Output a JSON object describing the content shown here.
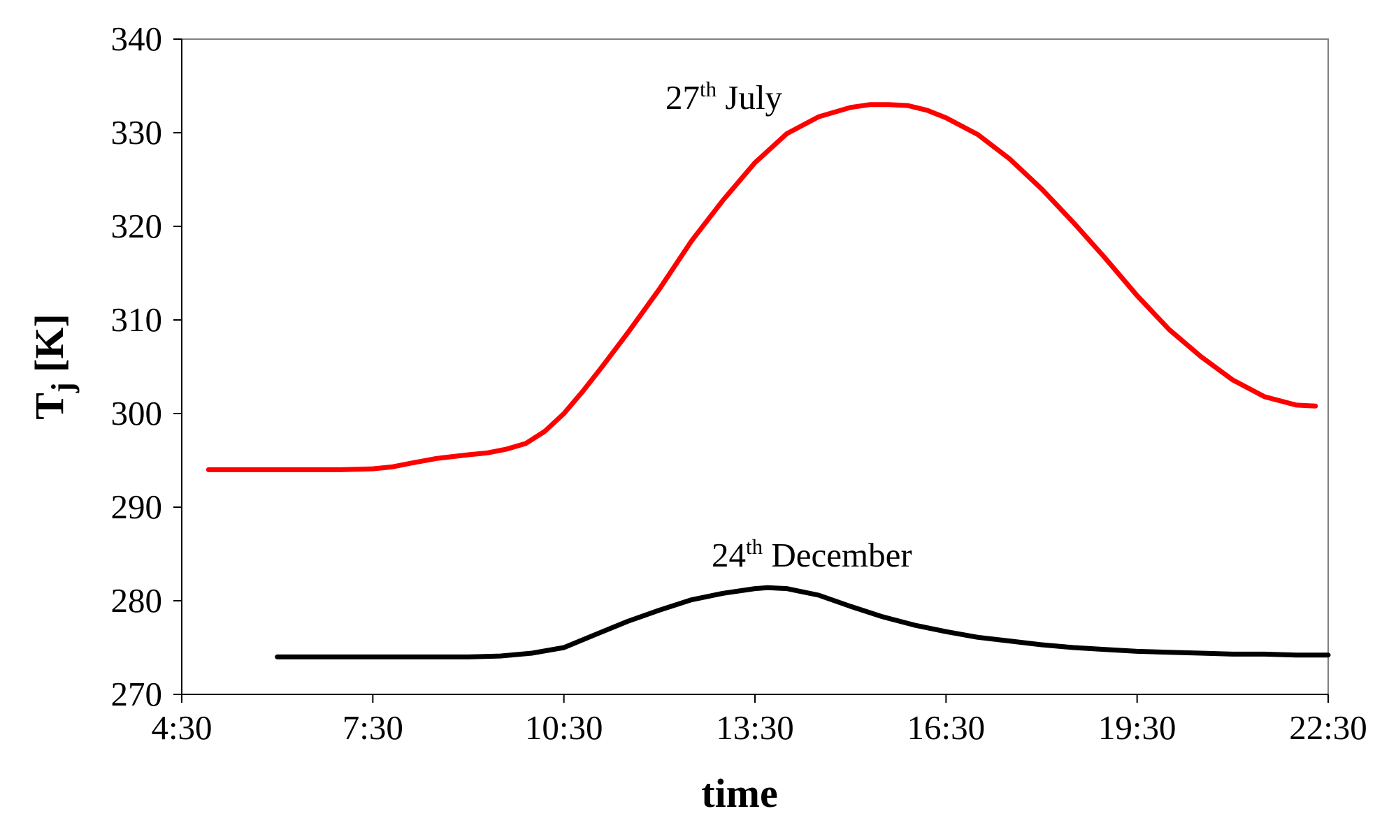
{
  "chart_data": {
    "type": "line",
    "title": "",
    "xlabel": "time",
    "ylabel": {
      "main": "T",
      "sub": "j",
      "unit": " [K]"
    },
    "ylim": [
      270,
      340
    ],
    "xlim_hours": [
      4.5,
      22.5
    ],
    "x_ticks": [
      {
        "hour": 4.5,
        "label": "4:30"
      },
      {
        "hour": 7.5,
        "label": "7:30"
      },
      {
        "hour": 10.5,
        "label": "10:30"
      },
      {
        "hour": 13.5,
        "label": "13:30"
      },
      {
        "hour": 16.5,
        "label": "16:30"
      },
      {
        "hour": 19.5,
        "label": "19:30"
      },
      {
        "hour": 22.5,
        "label": "22:30"
      }
    ],
    "y_ticks": [
      270,
      280,
      290,
      300,
      310,
      320,
      330,
      340
    ],
    "grid": false,
    "series": [
      {
        "name": "27th July",
        "color": "#ff0000",
        "x_hours": [
          4.92,
          5.5,
          6.0,
          6.5,
          7.0,
          7.5,
          7.8,
          8.1,
          8.5,
          9.0,
          9.3,
          9.6,
          9.9,
          10.2,
          10.5,
          10.8,
          11.1,
          11.5,
          12.0,
          12.5,
          13.0,
          13.5,
          14.0,
          14.5,
          15.0,
          15.3,
          15.6,
          15.9,
          16.2,
          16.5,
          17.0,
          17.5,
          18.0,
          18.5,
          19.0,
          19.5,
          20.0,
          20.5,
          21.0,
          21.5,
          22.0,
          22.3
        ],
        "values": [
          294.0,
          294.0,
          294.0,
          294.0,
          294.0,
          294.1,
          294.3,
          294.7,
          295.2,
          295.6,
          295.8,
          296.2,
          296.8,
          298.1,
          300.0,
          302.4,
          305.0,
          308.6,
          313.3,
          318.4,
          322.8,
          326.8,
          329.9,
          331.7,
          332.7,
          333.0,
          333.0,
          332.9,
          332.4,
          331.6,
          329.8,
          327.2,
          324.0,
          320.4,
          316.6,
          312.6,
          309.0,
          306.1,
          303.6,
          301.8,
          300.9,
          300.8
        ]
      },
      {
        "name": "24th December",
        "color": "#000000",
        "x_hours": [
          6.0,
          7.0,
          8.0,
          8.5,
          9.0,
          9.5,
          10.0,
          10.5,
          11.0,
          11.5,
          12.0,
          12.5,
          13.0,
          13.5,
          13.7,
          14.0,
          14.5,
          15.0,
          15.5,
          16.0,
          16.5,
          17.0,
          17.5,
          18.0,
          18.5,
          19.0,
          19.5,
          20.0,
          20.5,
          21.0,
          21.5,
          22.0,
          22.5
        ],
        "values": [
          274.0,
          274.0,
          274.0,
          274.0,
          274.0,
          274.1,
          274.4,
          275.0,
          276.4,
          277.8,
          279.0,
          280.1,
          280.8,
          281.3,
          281.4,
          281.3,
          280.6,
          279.4,
          278.3,
          277.4,
          276.7,
          276.1,
          275.7,
          275.3,
          275.0,
          274.8,
          274.6,
          274.5,
          274.4,
          274.3,
          274.3,
          274.2,
          274.2
        ]
      }
    ],
    "annotations": [
      {
        "text": "27",
        "sup": "th",
        "rest": " July",
        "series": "27th July"
      },
      {
        "text": "24",
        "sup": "th",
        "rest": " December",
        "series": "24th December"
      }
    ]
  }
}
